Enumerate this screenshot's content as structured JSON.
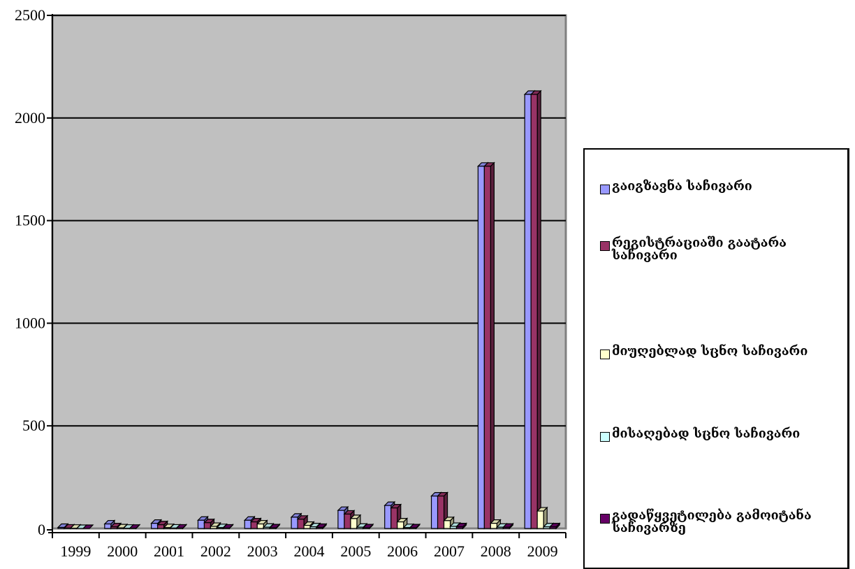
{
  "chart_data": {
    "type": "bar",
    "categories": [
      "1999",
      "2000",
      "2001",
      "2002",
      "2003",
      "2004",
      "2005",
      "2006",
      "2007",
      "2008",
      "2009"
    ],
    "series": [
      {
        "name": "გაიგზავნა საჩივარი",
        "color": "#9999FF",
        "values": [
          5,
          22,
          25,
          40,
          40,
          55,
          88,
          112,
          158,
          1765,
          2115
        ]
      },
      {
        "name": "რეგისტრაციაში გაატარა საჩივარი",
        "color": "#993366",
        "values": [
          2,
          8,
          18,
          28,
          32,
          45,
          70,
          100,
          158,
          1765,
          2115
        ]
      },
      {
        "name": "მიუღებლად სცნო საჩივარი",
        "color": "#FFFFCC",
        "values": [
          1,
          3,
          4,
          10,
          22,
          15,
          48,
          32,
          38,
          25,
          85
        ]
      },
      {
        "name": "მისაღებად სცნო საჩივარი",
        "color": "#CCFFFF",
        "values": [
          0,
          1,
          2,
          4,
          6,
          8,
          6,
          4,
          10,
          6,
          8
        ]
      },
      {
        "name": "გადაწყვეტილება გამოიტანა საჩივარზე",
        "color": "#660066",
        "values": [
          0,
          1,
          2,
          2,
          3,
          5,
          3,
          3,
          8,
          6,
          8
        ]
      }
    ],
    "yticks": [
      "0",
      "500",
      "1000",
      "1500",
      "2000",
      "2500"
    ],
    "ylim": [
      0,
      2500
    ],
    "grid": true,
    "legend_position": "right",
    "plot_background": "#C0C0C0"
  }
}
